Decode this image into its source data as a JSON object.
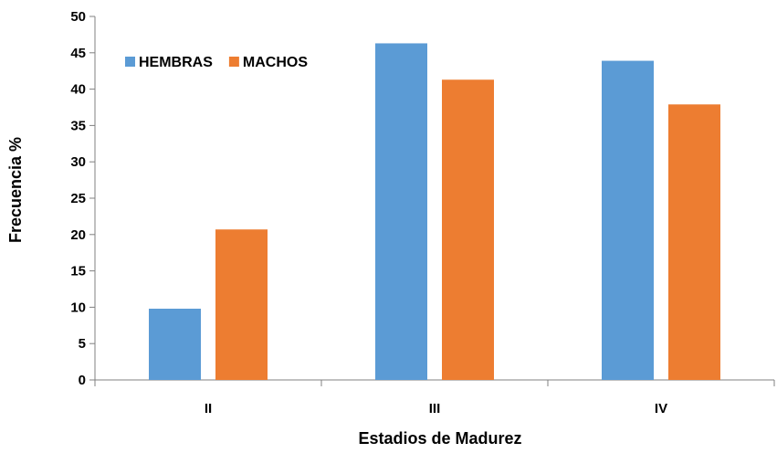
{
  "chart_data": {
    "type": "bar",
    "categories": [
      "II",
      "III",
      "IV"
    ],
    "series": [
      {
        "name": "HEMBRAS",
        "values": [
          9.8,
          46.3,
          43.9
        ],
        "color": "#5B9BD5"
      },
      {
        "name": "MACHOS",
        "values": [
          20.7,
          41.3,
          37.9
        ],
        "color": "#ED7D31"
      }
    ],
    "title": "",
    "xlabel": "Estadios de Madurez",
    "ylabel": "Frecuencia %",
    "ylim": [
      0,
      50
    ],
    "yticks": [
      0,
      5,
      10,
      15,
      20,
      25,
      30,
      35,
      40,
      45,
      50
    ],
    "grid": false,
    "legend_position": "top-left"
  }
}
